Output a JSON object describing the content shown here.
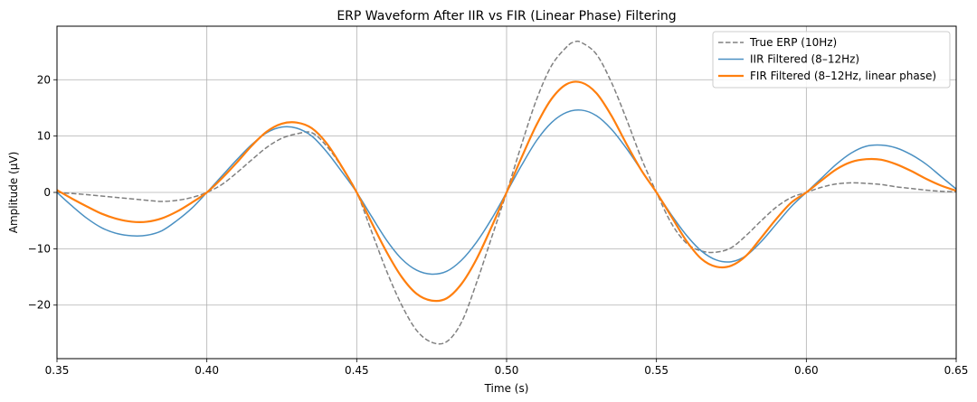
{
  "chart_data": {
    "type": "line",
    "title": "ERP Waveform After IIR vs FIR (Linear Phase) Filtering",
    "xlabel": "Time (s)",
    "ylabel": "Amplitude (μV)",
    "xlim": [
      0.35,
      0.65
    ],
    "ylim": [
      -29.5,
      29.5
    ],
    "xticks": [
      0.35,
      0.4,
      0.45,
      0.5,
      0.55,
      0.6,
      0.65
    ],
    "xtick_labels": [
      "0.35",
      "0.40",
      "0.45",
      "0.50",
      "0.55",
      "0.60",
      "0.65"
    ],
    "yticks": [
      -20,
      -10,
      0,
      10,
      20
    ],
    "ytick_labels": [
      "−20",
      "−10",
      "0",
      "10",
      "20"
    ],
    "grid": true,
    "legend_position": "top-right",
    "series": [
      {
        "name": "True ERP (10Hz)",
        "color": "#808080",
        "style": "dashed",
        "points": [
          [
            0.35,
            0
          ],
          [
            0.36,
            -0.4
          ],
          [
            0.37,
            -0.9
          ],
          [
            0.38,
            -1.4
          ],
          [
            0.385,
            -1.6
          ],
          [
            0.39,
            -1.4
          ],
          [
            0.395,
            -0.9
          ],
          [
            0.4,
            0
          ],
          [
            0.405,
            1.4
          ],
          [
            0.41,
            3.5
          ],
          [
            0.415,
            5.8
          ],
          [
            0.42,
            8
          ],
          [
            0.425,
            9.6
          ],
          [
            0.43,
            10.4
          ],
          [
            0.435,
            10.6
          ],
          [
            0.44,
            8.2
          ],
          [
            0.445,
            4.5
          ],
          [
            0.45,
            0
          ],
          [
            0.455,
            -7
          ],
          [
            0.46,
            -14
          ],
          [
            0.465,
            -20
          ],
          [
            0.47,
            -24.5
          ],
          [
            0.475,
            -26.6
          ],
          [
            0.48,
            -26.5
          ],
          [
            0.485,
            -23
          ],
          [
            0.49,
            -16
          ],
          [
            0.495,
            -8
          ],
          [
            0.5,
            0
          ],
          [
            0.505,
            8.5
          ],
          [
            0.51,
            16.5
          ],
          [
            0.515,
            22.5
          ],
          [
            0.52,
            25.8
          ],
          [
            0.5225,
            26.7
          ],
          [
            0.525,
            26.6
          ],
          [
            0.53,
            24.5
          ],
          [
            0.535,
            19.5
          ],
          [
            0.54,
            13
          ],
          [
            0.545,
            6
          ],
          [
            0.55,
            0
          ],
          [
            0.555,
            -5.5
          ],
          [
            0.56,
            -9
          ],
          [
            0.565,
            -10.4
          ],
          [
            0.57,
            -10.6
          ],
          [
            0.575,
            -9.8
          ],
          [
            0.58,
            -7.6
          ],
          [
            0.585,
            -5
          ],
          [
            0.59,
            -2.6
          ],
          [
            0.595,
            -0.9
          ],
          [
            0.6,
            0
          ],
          [
            0.605,
            0.9
          ],
          [
            0.61,
            1.5
          ],
          [
            0.615,
            1.7
          ],
          [
            0.62,
            1.6
          ],
          [
            0.625,
            1.4
          ],
          [
            0.63,
            1
          ],
          [
            0.635,
            0.7
          ],
          [
            0.64,
            0.4
          ],
          [
            0.645,
            0.2
          ],
          [
            0.65,
            0.1
          ]
        ]
      },
      {
        "name": "IIR Filtered (8–12Hz)",
        "color": "#4a90c2",
        "style": "solid",
        "points": [
          [
            0.35,
            0
          ],
          [
            0.355,
            -2.4
          ],
          [
            0.36,
            -4.6
          ],
          [
            0.365,
            -6.3
          ],
          [
            0.37,
            -7.3
          ],
          [
            0.375,
            -7.7
          ],
          [
            0.38,
            -7.6
          ],
          [
            0.385,
            -6.8
          ],
          [
            0.39,
            -5
          ],
          [
            0.395,
            -2.8
          ],
          [
            0.4,
            0
          ],
          [
            0.405,
            2.9
          ],
          [
            0.41,
            5.8
          ],
          [
            0.415,
            8.5
          ],
          [
            0.42,
            10.6
          ],
          [
            0.425,
            11.6
          ],
          [
            0.43,
            11.4
          ],
          [
            0.435,
            10
          ],
          [
            0.44,
            7.2
          ],
          [
            0.445,
            3.7
          ],
          [
            0.45,
            0
          ],
          [
            0.455,
            -4.3
          ],
          [
            0.46,
            -8.5
          ],
          [
            0.465,
            -11.8
          ],
          [
            0.47,
            -13.8
          ],
          [
            0.475,
            -14.5
          ],
          [
            0.48,
            -14
          ],
          [
            0.485,
            -12
          ],
          [
            0.49,
            -8.8
          ],
          [
            0.495,
            -4.7
          ],
          [
            0.5,
            0
          ],
          [
            0.505,
            4.8
          ],
          [
            0.51,
            9.2
          ],
          [
            0.515,
            12.4
          ],
          [
            0.52,
            14.2
          ],
          [
            0.525,
            14.6
          ],
          [
            0.53,
            13.6
          ],
          [
            0.535,
            11.2
          ],
          [
            0.54,
            7.8
          ],
          [
            0.545,
            3.9
          ],
          [
            0.55,
            0
          ],
          [
            0.555,
            -4
          ],
          [
            0.56,
            -7.6
          ],
          [
            0.565,
            -10.4
          ],
          [
            0.57,
            -12
          ],
          [
            0.575,
            -12.3
          ],
          [
            0.58,
            -11.2
          ],
          [
            0.585,
            -8.7
          ],
          [
            0.59,
            -5.6
          ],
          [
            0.595,
            -2.5
          ],
          [
            0.6,
            0
          ],
          [
            0.605,
            2.5
          ],
          [
            0.61,
            5
          ],
          [
            0.615,
            7
          ],
          [
            0.62,
            8.2
          ],
          [
            0.625,
            8.4
          ],
          [
            0.63,
            7.9
          ],
          [
            0.635,
            6.7
          ],
          [
            0.64,
            5
          ],
          [
            0.645,
            2.8
          ],
          [
            0.65,
            0.6
          ]
        ]
      },
      {
        "name": "FIR Filtered (8–12Hz, linear phase)",
        "color": "#ff7f0e",
        "style": "solid-thick",
        "points": [
          [
            0.35,
            0.4
          ],
          [
            0.355,
            -1.1
          ],
          [
            0.36,
            -2.5
          ],
          [
            0.365,
            -3.8
          ],
          [
            0.37,
            -4.7
          ],
          [
            0.375,
            -5.2
          ],
          [
            0.38,
            -5.2
          ],
          [
            0.385,
            -4.6
          ],
          [
            0.39,
            -3.4
          ],
          [
            0.395,
            -1.8
          ],
          [
            0.4,
            0
          ],
          [
            0.405,
            2.5
          ],
          [
            0.41,
            5.3
          ],
          [
            0.415,
            8.3
          ],
          [
            0.42,
            10.8
          ],
          [
            0.425,
            12.2
          ],
          [
            0.43,
            12.4
          ],
          [
            0.435,
            11.4
          ],
          [
            0.44,
            8.7
          ],
          [
            0.445,
            4.6
          ],
          [
            0.45,
            0
          ],
          [
            0.455,
            -5.4
          ],
          [
            0.46,
            -10.6
          ],
          [
            0.465,
            -15
          ],
          [
            0.47,
            -18
          ],
          [
            0.475,
            -19.2
          ],
          [
            0.48,
            -18.8
          ],
          [
            0.485,
            -16.2
          ],
          [
            0.49,
            -11.8
          ],
          [
            0.495,
            -6.1
          ],
          [
            0.5,
            0
          ],
          [
            0.505,
            6.2
          ],
          [
            0.51,
            12
          ],
          [
            0.515,
            16.6
          ],
          [
            0.52,
            19.2
          ],
          [
            0.525,
            19.5
          ],
          [
            0.53,
            17.6
          ],
          [
            0.535,
            13.6
          ],
          [
            0.54,
            8.6
          ],
          [
            0.545,
            3.9
          ],
          [
            0.55,
            0
          ],
          [
            0.555,
            -4.3
          ],
          [
            0.56,
            -8.6
          ],
          [
            0.565,
            -11.8
          ],
          [
            0.57,
            -13.2
          ],
          [
            0.575,
            -13
          ],
          [
            0.58,
            -11.2
          ],
          [
            0.585,
            -8
          ],
          [
            0.59,
            -4.7
          ],
          [
            0.595,
            -1.8
          ],
          [
            0.6,
            0
          ],
          [
            0.605,
            2.1
          ],
          [
            0.61,
            4.1
          ],
          [
            0.615,
            5.4
          ],
          [
            0.62,
            5.9
          ],
          [
            0.625,
            5.8
          ],
          [
            0.63,
            5
          ],
          [
            0.635,
            3.8
          ],
          [
            0.64,
            2.4
          ],
          [
            0.645,
            1.2
          ],
          [
            0.65,
            0.3
          ]
        ]
      }
    ]
  }
}
